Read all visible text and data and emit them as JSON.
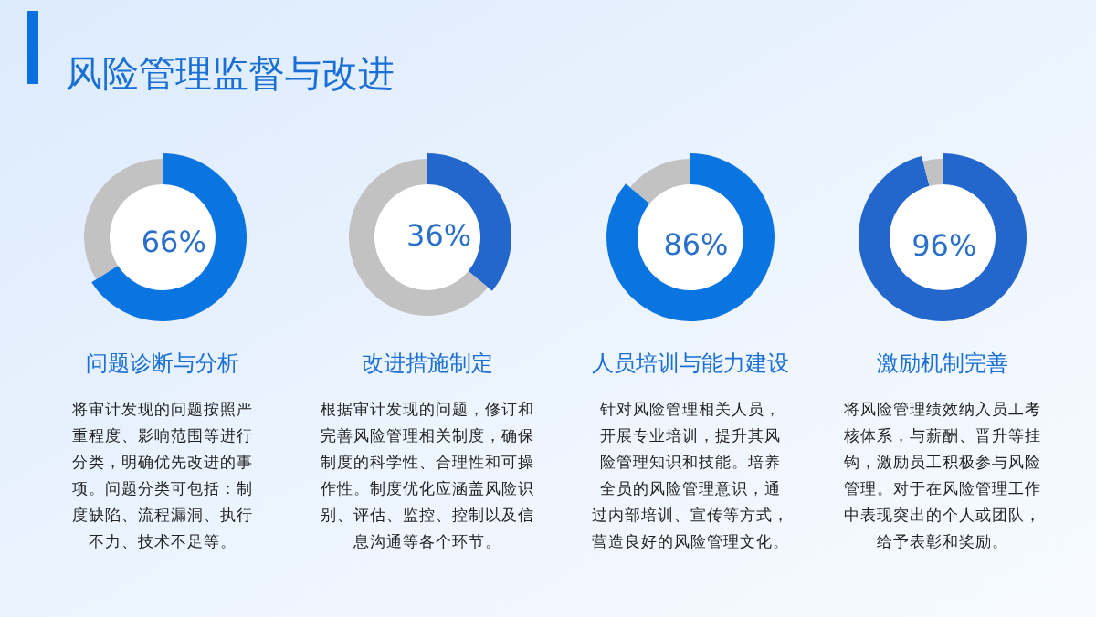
{
  "chart_data": [
    {
      "type": "other",
      "title": "风险管理监督与改进"
    },
    {
      "type": "donut",
      "title": "问题诊断与分析",
      "categories": [
        null,
        null
      ],
      "values": [
        66,
        34
      ],
      "colors": [
        "#0a74e0",
        "#c2c2c2"
      ],
      "value_labels": [
        "66%",
        null
      ],
      "annotations": [
        "将审计发现的问题按照严",
        "重程度、影响范围等进行",
        "分类，明确优先改进的事",
        "项。问题分类可包括：制",
        "度缺陷、流程漏洞、执行",
        "不力、技术不足等。"
      ]
    },
    {
      "type": "donut",
      "title": "改进措施制定",
      "categories": [
        null,
        null
      ],
      "values": [
        36,
        64
      ],
      "colors": [
        "#2366cc",
        "#c2c2c2"
      ],
      "value_labels": [
        "36%",
        null
      ],
      "annotations": [
        "根据审计发现的问题，修订和",
        "完善风险管理相关制度，确保",
        "制度的科学性、合理性和可操",
        "作性。制度优化应涵盖风险识",
        "别、评估、监控、控制以及信",
        "息沟通等各个环节。"
      ]
    },
    {
      "type": "donut",
      "title": "人员培训与能力建设",
      "categories": [
        null,
        null
      ],
      "values": [
        86,
        14
      ],
      "colors": [
        "#0a74e0",
        "#c2c2c2"
      ],
      "value_labels": [
        "86%",
        null
      ],
      "annotations": [
        "针对风险管理相关人员，",
        "开展专业培训，提升其风",
        "险管理知识和技能。培养",
        "全员的风险管理意识，通",
        "过内部培训、宣传等方式，",
        "营造良好的风险管理文化。"
      ]
    },
    {
      "type": "donut",
      "title": "激励机制完善",
      "categories": [
        null,
        null
      ],
      "values": [
        96,
        4
      ],
      "colors": [
        "#2366cc",
        "#c2c2c2"
      ],
      "value_labels": [
        "96%",
        null
      ],
      "annotations": [
        "将风险管理绩效纳入员工考",
        "核体系，与薪酬、晋升等挂",
        "钩，激励员工积极参与风险",
        "管理。对于在风险管理工作",
        "中表现突出的个人或团队，",
        "给予表彰和奖励。"
      ]
    }
  ]
}
